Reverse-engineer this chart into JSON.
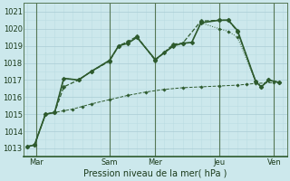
{
  "xlabel": "Pression niveau de la mer( hPa )",
  "bg_color": "#cce8ec",
  "grid_color_major": "#aaccd4",
  "grid_color_minor": "#bbdde2",
  "line_color": "#2d5a2d",
  "ylim": [
    1012.5,
    1021.5
  ],
  "xlim": [
    -0.2,
    14.2
  ],
  "day_labels": [
    "Mar",
    "Sam",
    "Mer",
    "Jeu",
    "Ven"
  ],
  "day_positions": [
    0.5,
    4.5,
    7.0,
    10.5,
    13.5
  ],
  "yticks": [
    1013,
    1014,
    1015,
    1016,
    1017,
    1018,
    1019,
    1020,
    1021
  ],
  "series": [
    {
      "x": [
        0.0,
        0.4,
        1.0,
        1.5,
        2.0,
        2.8,
        3.5,
        4.5,
        5.0,
        5.5,
        6.0,
        7.0,
        7.5,
        8.0,
        8.5,
        9.0,
        9.5,
        10.5,
        11.0,
        11.5,
        12.5,
        12.8,
        13.2,
        13.8
      ],
      "y": [
        1013.1,
        1013.2,
        1015.0,
        1015.1,
        1017.1,
        1017.0,
        1017.5,
        1018.15,
        1019.0,
        1019.15,
        1019.5,
        1018.2,
        1018.6,
        1019.0,
        1019.15,
        1019.2,
        1020.35,
        1020.5,
        1020.5,
        1019.9,
        1016.9,
        1016.6,
        1017.0,
        1016.85
      ],
      "style": "-",
      "markersize": 2.5,
      "linewidth": 1.2
    },
    {
      "x": [
        0.0,
        0.4,
        1.0,
        1.5,
        2.0,
        2.8,
        3.5,
        4.5,
        5.0,
        5.5,
        6.0,
        7.0,
        8.0,
        8.5,
        9.5,
        10.5,
        11.0,
        11.5,
        12.5,
        12.8,
        13.2,
        13.8
      ],
      "y": [
        1013.1,
        1013.2,
        1015.0,
        1015.1,
        1016.6,
        1017.0,
        1017.5,
        1018.1,
        1019.0,
        1019.25,
        1019.55,
        1018.15,
        1019.1,
        1019.15,
        1020.45,
        1020.5,
        1020.5,
        1019.85,
        1016.9,
        1016.6,
        1017.0,
        1016.85
      ],
      "style": "--",
      "markersize": 2.5,
      "linewidth": 0.9
    },
    {
      "x": [
        0.0,
        0.4,
        1.0,
        1.5,
        2.0,
        2.5,
        3.0,
        3.5,
        4.5,
        5.5,
        6.5,
        7.5,
        8.5,
        9.5,
        10.5,
        11.5,
        12.0,
        12.5,
        13.5
      ],
      "y": [
        1013.1,
        1013.2,
        1015.0,
        1015.1,
        1015.2,
        1015.3,
        1015.45,
        1015.6,
        1015.85,
        1016.1,
        1016.3,
        1016.45,
        1016.55,
        1016.6,
        1016.65,
        1016.7,
        1016.75,
        1016.8,
        1016.85
      ],
      "style": "--",
      "markersize": 1.8,
      "linewidth": 0.7
    },
    {
      "x": [
        0.0,
        0.4,
        1.0,
        1.5,
        2.0,
        2.8,
        3.5,
        4.5,
        5.0,
        5.5,
        6.0,
        7.0,
        7.5,
        8.0,
        8.5,
        9.0,
        9.5,
        10.5,
        11.0,
        11.5,
        12.5,
        12.8,
        13.2,
        13.8
      ],
      "y": [
        1013.1,
        1013.2,
        1015.0,
        1015.1,
        1017.1,
        1017.0,
        1017.5,
        1018.15,
        1019.0,
        1019.15,
        1019.5,
        1018.2,
        1018.6,
        1019.0,
        1019.15,
        1019.2,
        1020.35,
        1020.0,
        1019.85,
        1019.5,
        1016.9,
        1016.6,
        1017.0,
        1016.85
      ],
      "style": ":",
      "markersize": 1.8,
      "linewidth": 0.7
    }
  ]
}
